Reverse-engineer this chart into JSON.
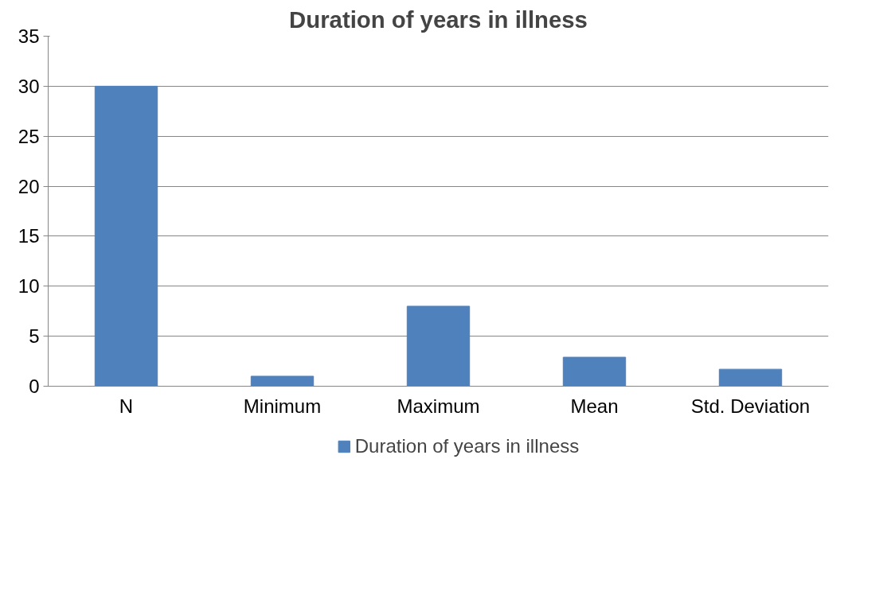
{
  "chart_data": {
    "type": "bar",
    "title": "Duration of years in illness",
    "categories": [
      "N",
      "Minimum",
      "Maximum",
      "Mean",
      "Std. Deviation"
    ],
    "series": [
      {
        "name": "Duration of years in illness",
        "color": "#4f81bd",
        "values": [
          30,
          1,
          8,
          2.9,
          1.7
        ]
      }
    ],
    "ylim": [
      0,
      35
    ],
    "yticks": [
      0,
      5,
      10,
      15,
      20,
      25,
      30,
      35
    ],
    "grid": "y",
    "legend": "bottom"
  }
}
